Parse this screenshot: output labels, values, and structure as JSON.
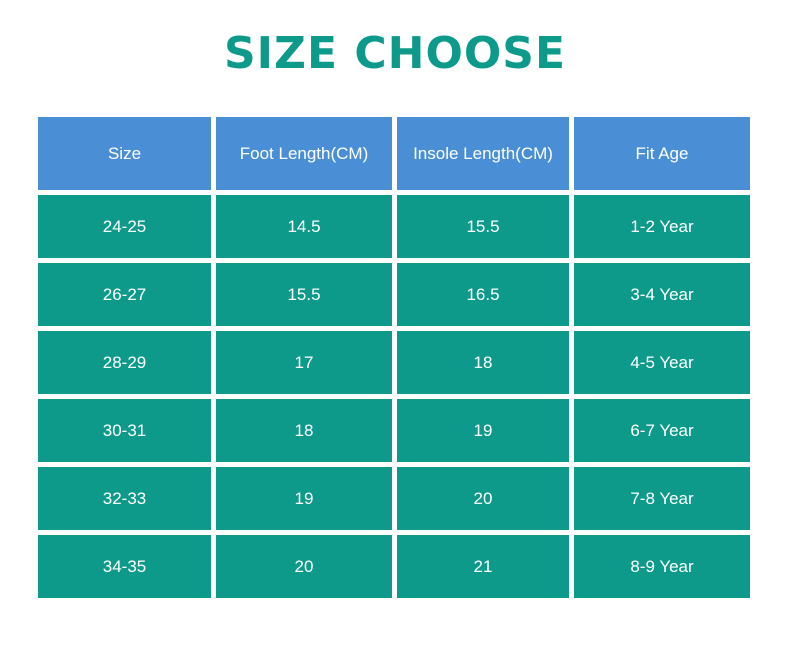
{
  "title": "SIZE CHOOSE",
  "colors": {
    "title": "#0e9a8a",
    "header_bg": "#4a8fd6",
    "row_bg": "#0e9a8a",
    "cell_text": "#ffffff"
  },
  "table": {
    "headers": [
      "Size",
      "Foot Length(CM)",
      "Insole Length(CM)",
      "Fit Age"
    ],
    "rows": [
      [
        "24-25",
        "14.5",
        "15.5",
        "1-2 Year"
      ],
      [
        "26-27",
        "15.5",
        "16.5",
        "3-4 Year"
      ],
      [
        "28-29",
        "17",
        "18",
        "4-5 Year"
      ],
      [
        "30-31",
        "18",
        "19",
        "6-7 Year"
      ],
      [
        "32-33",
        "19",
        "20",
        "7-8 Year"
      ],
      [
        "34-35",
        "20",
        "21",
        "8-9 Year"
      ]
    ]
  }
}
